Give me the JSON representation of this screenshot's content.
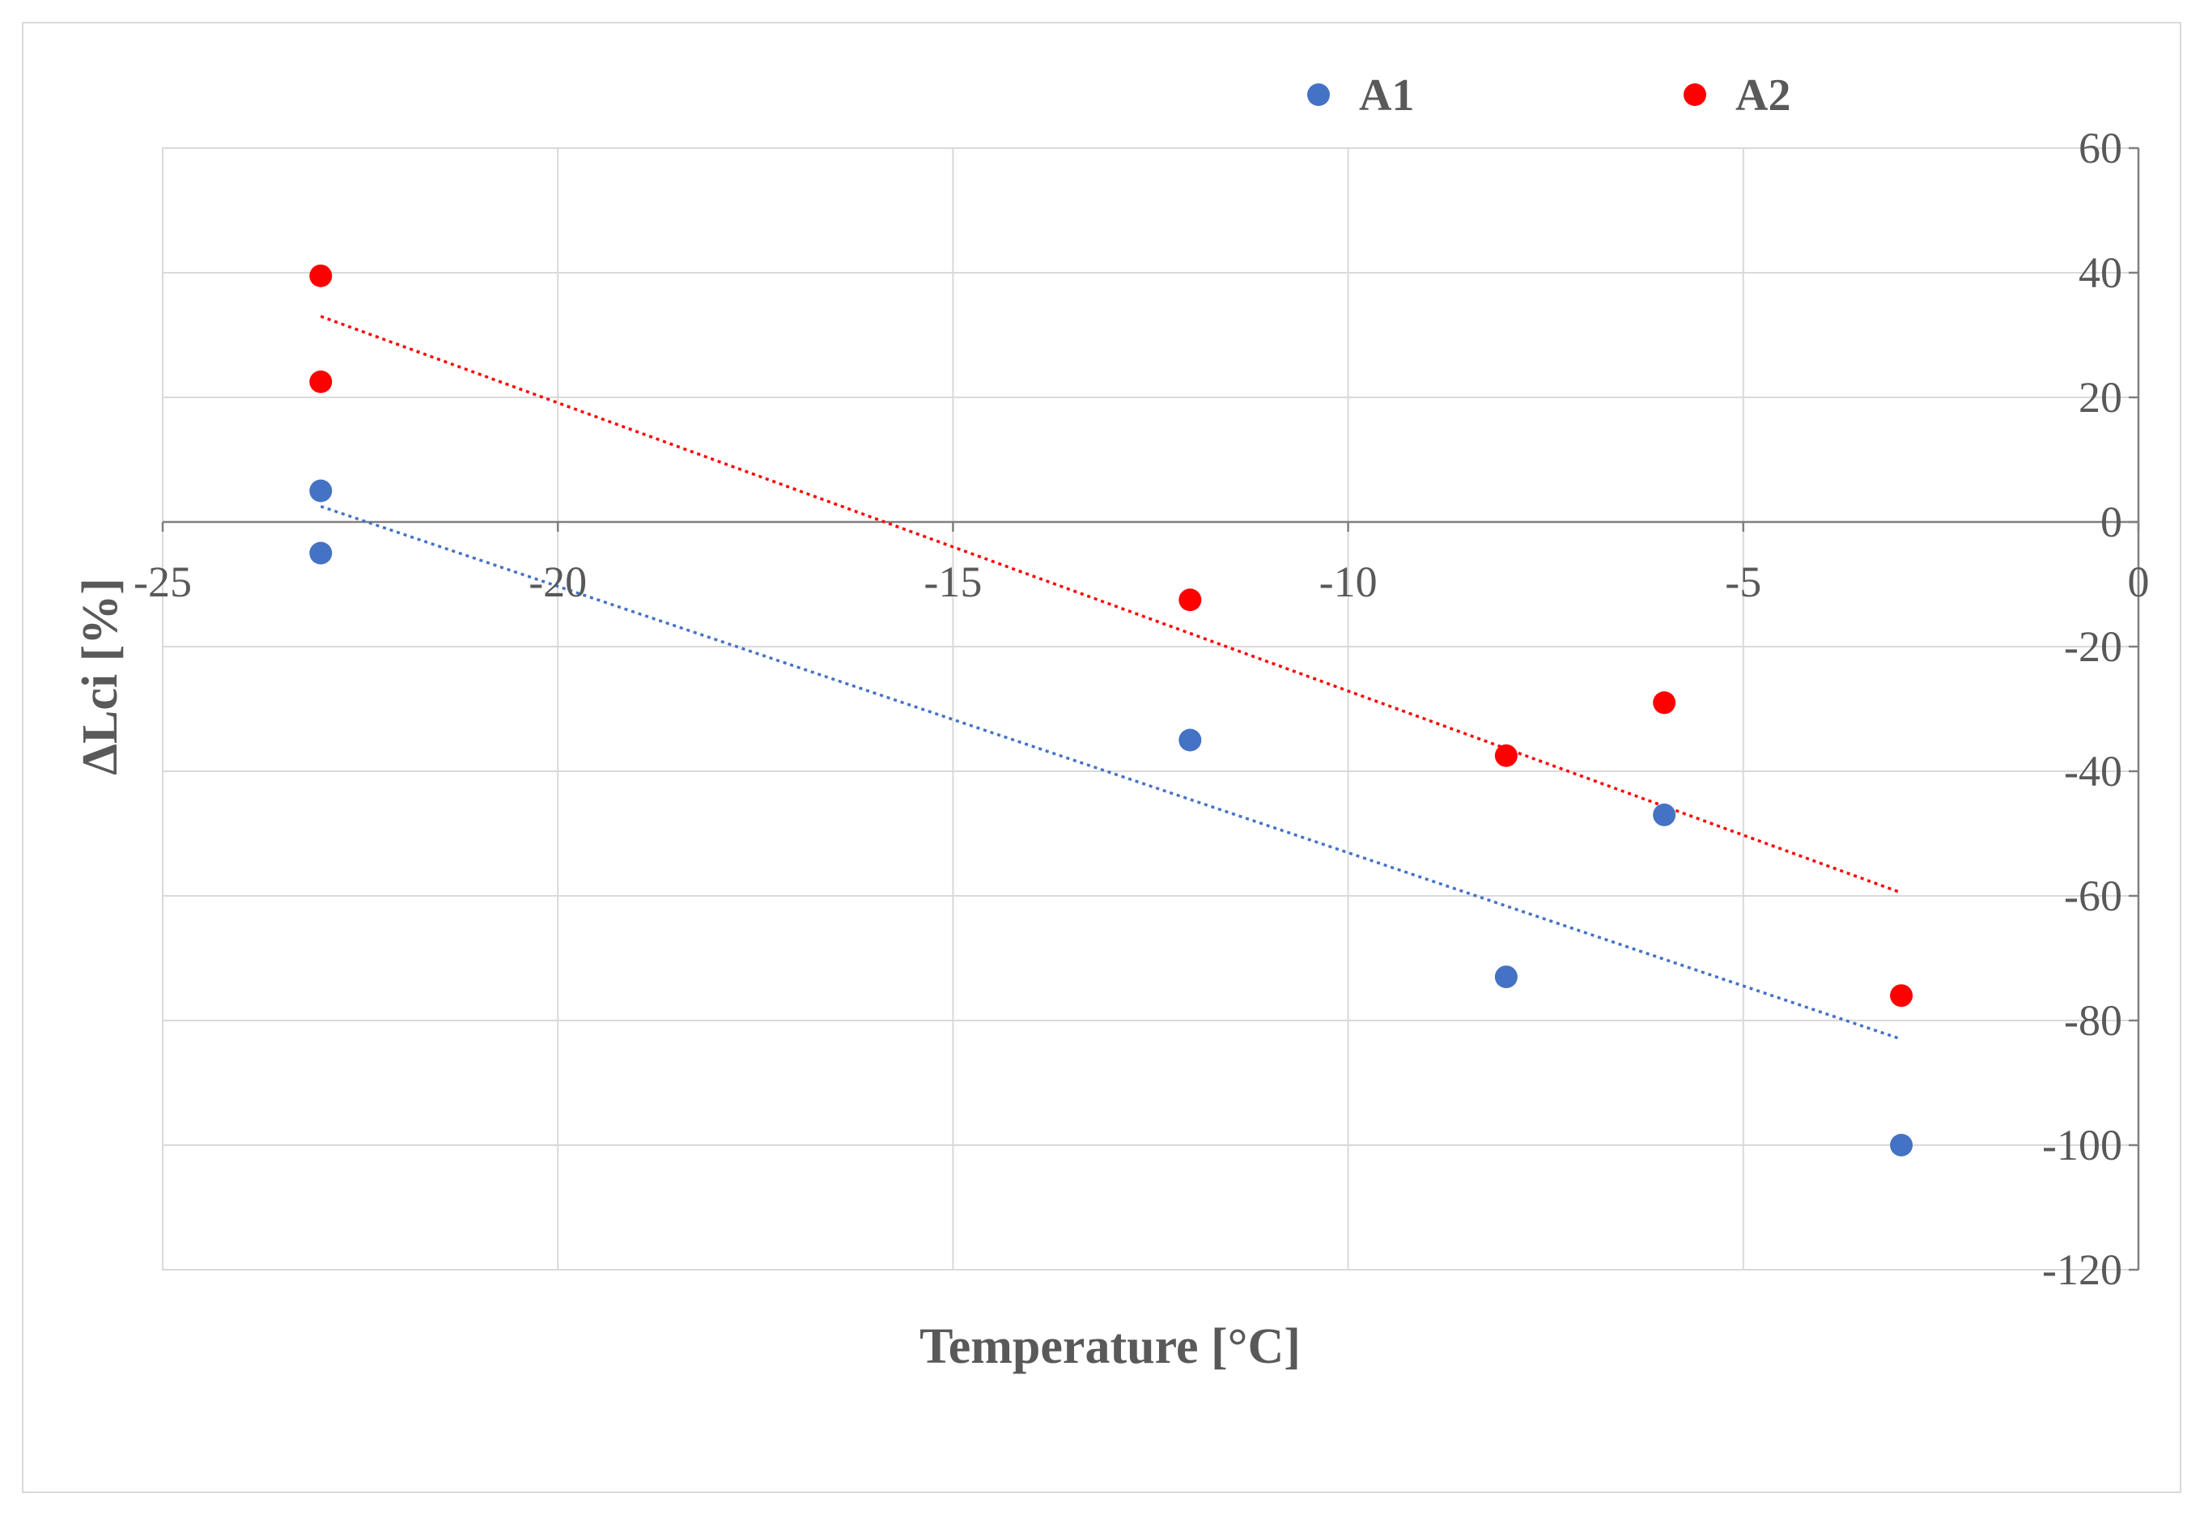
{
  "chart_data": {
    "type": "scatter",
    "title": "",
    "xlabel": "Temperature [°C]",
    "ylabel": "ΔLci [%]",
    "xlim": [
      -25,
      0
    ],
    "ylim": [
      -120,
      60
    ],
    "x_ticks": [
      -25,
      -20,
      -15,
      -10,
      -5,
      0
    ],
    "x_tick_labels": [
      "-25",
      "-20",
      "-15",
      "-10",
      "-5",
      "0"
    ],
    "y_ticks": [
      60,
      40,
      20,
      0,
      -20,
      -40,
      -60,
      -80,
      -100,
      -120
    ],
    "y_tick_labels": [
      "60",
      "40",
      "20",
      "0",
      "-20",
      "-40",
      "-60",
      "-80",
      "-100",
      "-120"
    ],
    "grid": true,
    "legend_position": "top",
    "series": [
      {
        "name": "A1",
        "color": "#4472c4",
        "points": [
          {
            "x": -23,
            "y": 5
          },
          {
            "x": -23,
            "y": -5
          },
          {
            "x": -12,
            "y": -35
          },
          {
            "x": -8,
            "y": -73
          },
          {
            "x": -6,
            "y": -47
          },
          {
            "x": -3,
            "y": -100
          }
        ],
        "trendline": {
          "type": "linear",
          "dotted": true,
          "x": [
            -23,
            -3
          ],
          "y": [
            2.5,
            -83
          ]
        }
      },
      {
        "name": "A2",
        "color": "#ff0000",
        "points": [
          {
            "x": -23,
            "y": 39.5
          },
          {
            "x": -23,
            "y": 22.5
          },
          {
            "x": -12,
            "y": -12.5
          },
          {
            "x": -8,
            "y": -37.5
          },
          {
            "x": -6,
            "y": -29
          },
          {
            "x": -3,
            "y": -76
          }
        ],
        "trendline": {
          "type": "linear",
          "dotted": true,
          "x": [
            -23,
            -3
          ],
          "y": [
            33,
            -59.5
          ]
        }
      }
    ]
  }
}
